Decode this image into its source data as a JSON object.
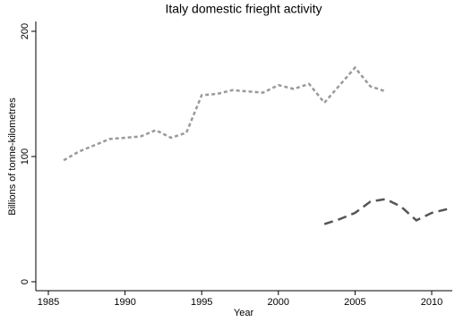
{
  "chart_data": {
    "type": "line",
    "title": "Italy domestic frieght activity",
    "x_label": "Year",
    "y_label": "Billions of tonne-kilometres",
    "x": [
      1986,
      1987,
      1988,
      1989,
      1990,
      1991,
      1992,
      1993,
      1994,
      1995,
      1996,
      1997,
      1998,
      1999,
      2000,
      2001,
      2002,
      2003,
      2004,
      2005,
      2006,
      2007,
      2008,
      2009,
      2010,
      2011
    ],
    "series": [
      {
        "color": "#9a9a9a",
        "values": [
          97,
          104,
          109,
          114,
          115,
          116,
          121,
          115,
          119,
          149,
          150,
          153,
          152,
          151,
          157,
          154,
          158,
          143,
          157,
          171,
          156,
          152,
          null,
          null,
          null,
          null
        ]
      },
      {
        "color": "#555555",
        "values": [
          null,
          null,
          null,
          null,
          null,
          null,
          null,
          null,
          null,
          null,
          null,
          null,
          null,
          null,
          null,
          null,
          null,
          46,
          50,
          55,
          64,
          66,
          60,
          49,
          55,
          58
        ]
      }
    ],
    "xlim": [
      1985,
      2010
    ],
    "xticks": [
      1985,
      1990,
      1995,
      2000,
      2005,
      2010
    ],
    "ylim": [
      0,
      200
    ],
    "yticks": [
      0,
      100,
      200
    ]
  }
}
